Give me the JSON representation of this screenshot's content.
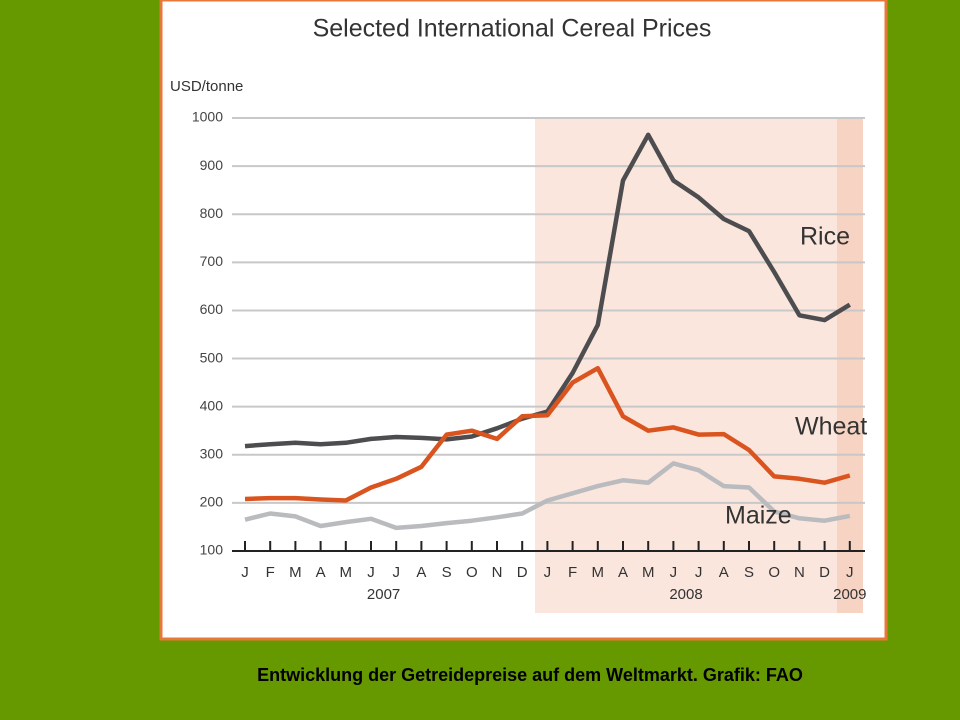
{
  "chart_data": {
    "type": "line",
    "title": "Selected International Cereal Prices",
    "y_label": "USD/tonne",
    "categories": [
      "J",
      "F",
      "M",
      "A",
      "M",
      "J",
      "J",
      "A",
      "S",
      "O",
      "N",
      "D",
      "J",
      "F",
      "M",
      "A",
      "M",
      "J",
      "J",
      "A",
      "S",
      "O",
      "N",
      "D",
      "J"
    ],
    "year_labels": [
      "2007",
      "2008",
      "2009"
    ],
    "series": [
      {
        "name": "Rice",
        "color": "#4d4d50",
        "values": [
          318,
          322,
          325,
          322,
          325,
          333,
          337,
          335,
          332,
          338,
          355,
          375,
          390,
          470,
          570,
          870,
          965,
          870,
          835,
          790,
          765,
          680,
          590,
          580,
          612
        ]
      },
      {
        "name": "Wheat",
        "color": "#d9541e",
        "values": [
          208,
          210,
          210,
          207,
          205,
          232,
          250,
          275,
          342,
          350,
          333,
          380,
          382,
          450,
          480,
          380,
          350,
          357,
          342,
          343,
          310,
          255,
          250,
          242,
          257
        ]
      },
      {
        "name": "Maize",
        "color": "#b9bbbe",
        "values": [
          165,
          178,
          172,
          152,
          160,
          167,
          148,
          152,
          158,
          163,
          170,
          178,
          205,
          220,
          235,
          247,
          242,
          282,
          268,
          235,
          232,
          182,
          168,
          163,
          173
        ]
      }
    ],
    "ylim": [
      100,
      1000
    ],
    "yticks": [
      100,
      200,
      300,
      400,
      500,
      600,
      700,
      800,
      900,
      1000
    ],
    "grid": true
  },
  "caption": "Entwicklung der Getreidepreise auf dem Weltmarkt. Grafik: FAO"
}
